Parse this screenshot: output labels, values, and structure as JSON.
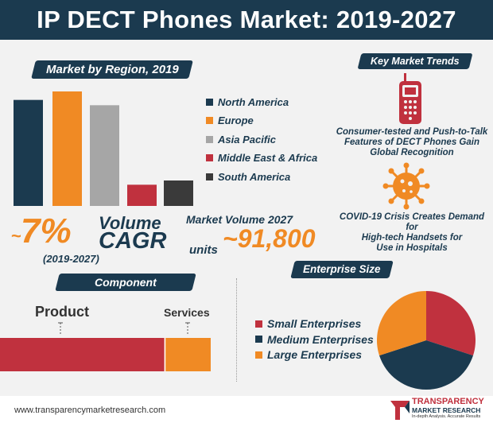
{
  "title": "IP DECT Phones Market: 2019-2027",
  "region_section": {
    "heading": "Market by Region, 2019"
  },
  "chart_data": [
    {
      "type": "bar",
      "title": "Market by Region, 2019",
      "categories": [
        "North America",
        "Europe",
        "Asia Pacific",
        "Middle East & Africa",
        "South America"
      ],
      "values": [
        100,
        108,
        95,
        20,
        24
      ],
      "colors": [
        "#1b3a4f",
        "#f08a24",
        "#a6a6a6",
        "#c0313e",
        "#3a3a3a"
      ],
      "legend": "right"
    },
    {
      "type": "bar",
      "title": "Component",
      "categories": [
        "Product",
        "Services"
      ],
      "values": [
        78,
        22
      ],
      "colors": [
        "#c0313e",
        "#f08a24"
      ],
      "orientation": "horizontal-stacked"
    },
    {
      "type": "pie",
      "title": "Enterprise Size",
      "categories": [
        "Small Enterprises",
        "Medium Enterprises",
        "Large Enterprises"
      ],
      "values": [
        30,
        40,
        30
      ],
      "colors": [
        "#c0313e",
        "#1b3a4f",
        "#f08a24"
      ]
    }
  ],
  "cagr": {
    "tilde": "~",
    "value": "7%",
    "label_top": "Volume",
    "label_bottom": "CAGR",
    "period": "(2019-2027)"
  },
  "market_volume": {
    "heading": "Market Volume 2027",
    "prefix": "units",
    "value": "~91,800"
  },
  "key_trends": {
    "heading": "Key Market Trends",
    "items": [
      {
        "icon": "phone-icon",
        "text_lines": [
          "Consumer-tested and Push-to-Talk",
          "Features of DECT Phones Gain",
          "Global Recognition"
        ]
      },
      {
        "icon": "virus-icon",
        "text_lines": [
          "COVID-19 Crisis Creates Demand for",
          "High-tech Handsets for",
          "Use in Hospitals"
        ]
      }
    ]
  },
  "component_section": {
    "heading": "Component",
    "product_label": "Product",
    "services_label": "Services"
  },
  "enterprise_section": {
    "heading": "Enterprise Size"
  },
  "footer": {
    "url": "www.transparencymarketresearch.com",
    "logo_line1": "TRANSPARENCY",
    "logo_line2": "MARKET RESEARCH",
    "logo_tagline": "In-depth Analysis. Accurate Results"
  }
}
